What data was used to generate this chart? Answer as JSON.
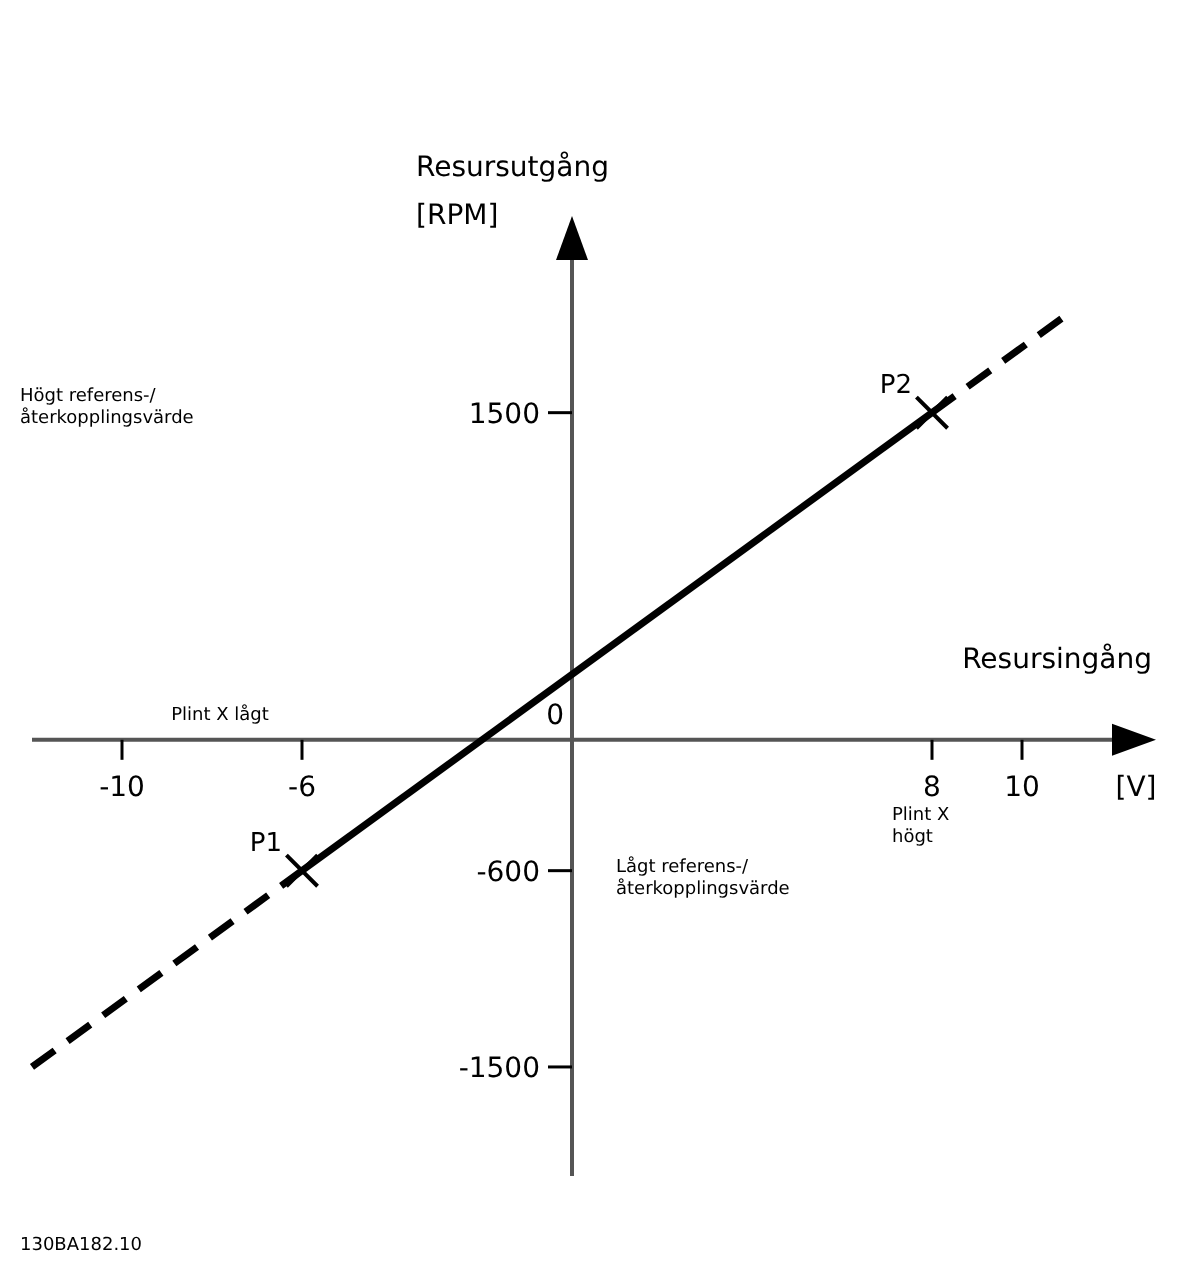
{
  "chart_data": {
    "type": "line",
    "xlabel": "Resursingång [V]",
    "ylabel": "Resursutgång [RPM]",
    "xlim": [
      -12,
      12
    ],
    "ylim": [
      -2000,
      2200
    ],
    "xticks": [
      -10,
      -6,
      8,
      10
    ],
    "yticks": [
      -1500,
      -600,
      1500
    ],
    "grid": false,
    "series": [
      {
        "color": "#000000",
        "line_style": "dashed",
        "x": [
          -12,
          -6
        ],
        "values": [
          -1500,
          -600
        ]
      },
      {
        "color": "#000000",
        "line_style": "dashed",
        "x": [
          8,
          11
        ],
        "values": [
          1500,
          1950
        ]
      },
      {
        "color": "#000000",
        "line_style": "solid",
        "x": [
          -6,
          8
        ],
        "values": [
          -600,
          1500
        ]
      },
      {
        "type": "scatter",
        "color": "#000000",
        "marker": "cross",
        "x": [
          -6,
          8
        ],
        "values": [
          -600,
          1500
        ]
      }
    ],
    "annotations": [
      {
        "text": "P1",
        "x": -6,
        "y": -600
      },
      {
        "text": "P2",
        "x": 8,
        "y": 1500
      },
      "Plint X lågt",
      "Plint X\nhögt",
      "Högt referens-/\nåterkopplingsvärde",
      "Lågt referens-/\nåterkopplingsvärde",
      "0",
      "130BA182.10"
    ]
  }
}
